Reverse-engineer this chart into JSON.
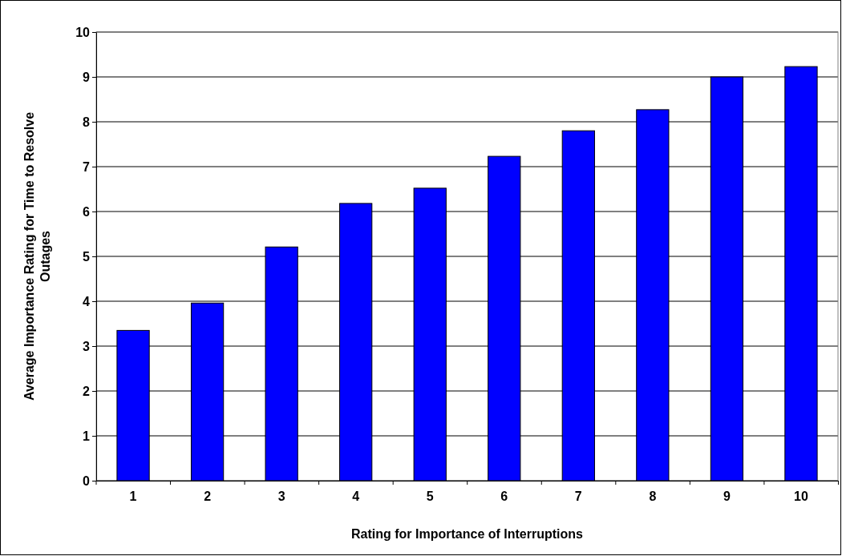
{
  "chart_data": {
    "type": "bar",
    "xlabel": "Rating for Importance of Interruptions",
    "ylabel": "Average Importance Rating for Time to Resolve Outages",
    "categories": [
      "1",
      "2",
      "3",
      "4",
      "5",
      "6",
      "7",
      "8",
      "9",
      "10"
    ],
    "values": [
      3.35,
      3.96,
      5.21,
      6.18,
      6.52,
      7.23,
      7.8,
      8.27,
      9.0,
      9.23
    ],
    "color": "#0000ff",
    "ylim": [
      0,
      10
    ],
    "yticks": [
      0,
      1,
      2,
      3,
      4,
      5,
      6,
      7,
      8,
      9,
      10
    ],
    "grid": "y"
  }
}
